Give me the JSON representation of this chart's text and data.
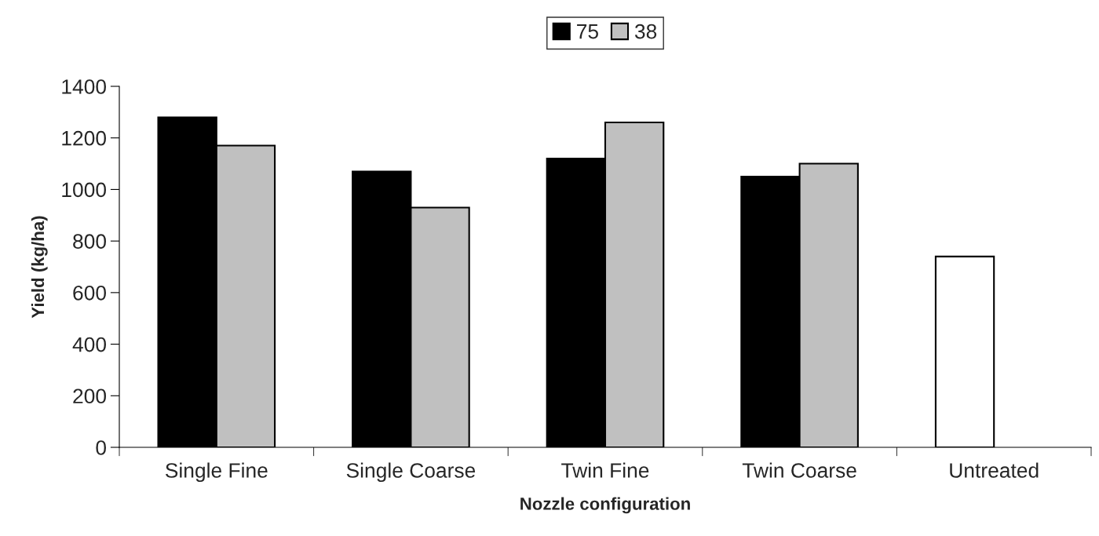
{
  "chart_data": {
    "type": "bar",
    "xlabel": "Nozzle configuration",
    "ylabel": "Yield (kg/ha)",
    "categories": [
      "Single Fine",
      "Single Coarse",
      "Twin Fine",
      "Twin Coarse",
      "Untreated"
    ],
    "series": [
      {
        "name": "75",
        "color": "#000000",
        "colors": [
          "#000000",
          "#000000",
          "#000000",
          "#000000",
          "#ffffff"
        ],
        "values": [
          1280,
          1070,
          1120,
          1050,
          740
        ]
      },
      {
        "name": "38",
        "color": "#c0c0c0",
        "values": [
          1170,
          930,
          1260,
          1100,
          null
        ]
      }
    ],
    "ylim": [
      0,
      1400
    ],
    "yticks": [
      0,
      200,
      400,
      600,
      800,
      1000,
      1200,
      1400
    ],
    "grid": false,
    "legend": "top"
  }
}
